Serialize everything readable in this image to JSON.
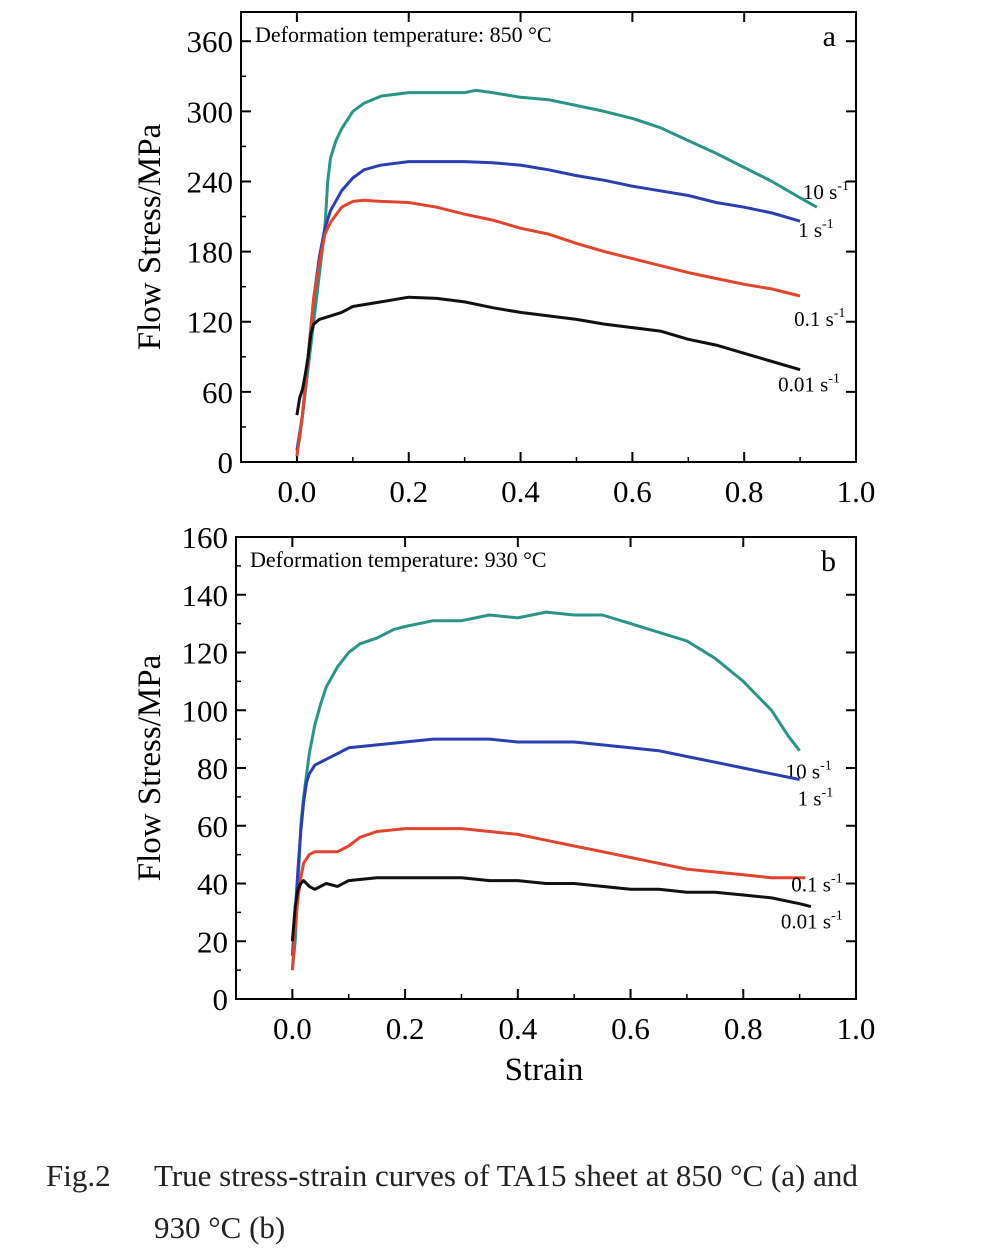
{
  "caption": {
    "label": "Fig.2",
    "text": "True stress-strain curves of TA15 sheet at 850 °C (a) and",
    "text2": "930 °C (b)"
  },
  "chart_data": [
    {
      "type": "line",
      "panel_label": "a",
      "annotation": "Deformation temperature: 850 °C",
      "xlabel": "",
      "ylabel": "Flow Stress/MPa",
      "xlim": [
        -0.1,
        1.0
      ],
      "ylim": [
        0,
        385
      ],
      "xticks": [
        "0.0",
        "0.2",
        "0.4",
        "0.6",
        "0.8",
        "1.0"
      ],
      "yticks": [
        "0",
        "60",
        "120",
        "180",
        "240",
        "300",
        "360"
      ],
      "series": [
        {
          "name": "10 s-1",
          "rate": "10",
          "color": "#2a9488",
          "x": [
            0,
            0.005,
            0.01,
            0.015,
            0.02,
            0.03,
            0.04,
            0.05,
            0.055,
            0.06,
            0.07,
            0.08,
            0.1,
            0.12,
            0.15,
            0.2,
            0.25,
            0.3,
            0.32,
            0.35,
            0.4,
            0.45,
            0.5,
            0.55,
            0.6,
            0.65,
            0.7,
            0.75,
            0.8,
            0.85,
            0.9,
            0.93
          ],
          "y": [
            10,
            20,
            40,
            60,
            80,
            120,
            160,
            200,
            240,
            260,
            275,
            285,
            300,
            307,
            313,
            316,
            316,
            316,
            318,
            316,
            312,
            310,
            305,
            300,
            294,
            286,
            275,
            264,
            252,
            240,
            226,
            218
          ]
        },
        {
          "name": "1 s-1",
          "rate": "1",
          "color": "#2b3fb0",
          "x": [
            0,
            0.01,
            0.02,
            0.03,
            0.04,
            0.05,
            0.06,
            0.08,
            0.1,
            0.12,
            0.15,
            0.2,
            0.25,
            0.3,
            0.35,
            0.4,
            0.45,
            0.5,
            0.55,
            0.6,
            0.65,
            0.7,
            0.75,
            0.8,
            0.85,
            0.9
          ],
          "y": [
            10,
            40,
            90,
            140,
            175,
            200,
            215,
            232,
            243,
            250,
            254,
            257,
            257,
            257,
            256,
            254,
            250,
            245,
            241,
            236,
            232,
            228,
            222,
            218,
            213,
            206
          ]
        },
        {
          "name": "0.1 s-1",
          "rate": "0.1",
          "color": "#e0452e",
          "x": [
            0,
            0.01,
            0.02,
            0.03,
            0.04,
            0.05,
            0.06,
            0.08,
            0.1,
            0.12,
            0.15,
            0.2,
            0.25,
            0.3,
            0.35,
            0.4,
            0.45,
            0.5,
            0.55,
            0.6,
            0.65,
            0.7,
            0.75,
            0.8,
            0.85,
            0.9
          ],
          "y": [
            5,
            40,
            90,
            140,
            170,
            195,
            205,
            218,
            223,
            224,
            223,
            222,
            218,
            212,
            207,
            200,
            195,
            187,
            180,
            174,
            168,
            162,
            157,
            152,
            148,
            142
          ]
        },
        {
          "name": "0.01 s-1",
          "rate": "0.01",
          "color": "#111111",
          "x": [
            0,
            0.005,
            0.01,
            0.015,
            0.02,
            0.025,
            0.03,
            0.04,
            0.06,
            0.08,
            0.1,
            0.15,
            0.2,
            0.25,
            0.3,
            0.35,
            0.4,
            0.45,
            0.5,
            0.55,
            0.6,
            0.65,
            0.7,
            0.75,
            0.8,
            0.85,
            0.9
          ],
          "y": [
            40,
            55,
            62,
            75,
            90,
            110,
            118,
            122,
            125,
            128,
            133,
            137,
            141,
            140,
            137,
            132,
            128,
            125,
            122,
            118,
            115,
            112,
            105,
            100,
            93,
            86,
            79
          ]
        }
      ]
    },
    {
      "type": "line",
      "panel_label": "b",
      "annotation": "Deformation temperature: 930 °C",
      "xlabel": "Strain",
      "ylabel": "Flow Stress/MPa",
      "xlim": [
        -0.1,
        1.0
      ],
      "ylim": [
        0,
        160
      ],
      "xticks": [
        "0.0",
        "0.2",
        "0.4",
        "0.6",
        "0.8",
        "1.0"
      ],
      "yticks": [
        "0",
        "20",
        "40",
        "60",
        "80",
        "100",
        "120",
        "140",
        "160"
      ],
      "series": [
        {
          "name": "10 s-1",
          "rate": "10",
          "color": "#2a9488",
          "x": [
            0,
            0.005,
            0.01,
            0.015,
            0.02,
            0.03,
            0.04,
            0.05,
            0.06,
            0.08,
            0.1,
            0.12,
            0.15,
            0.18,
            0.2,
            0.25,
            0.3,
            0.35,
            0.4,
            0.45,
            0.5,
            0.55,
            0.6,
            0.65,
            0.7,
            0.75,
            0.8,
            0.85,
            0.88,
            0.9
          ],
          "y": [
            10,
            20,
            40,
            60,
            70,
            85,
            95,
            102,
            108,
            115,
            120,
            123,
            125,
            128,
            129,
            131,
            131,
            133,
            132,
            134,
            133,
            133,
            130,
            127,
            124,
            118,
            110,
            100,
            91,
            86
          ]
        },
        {
          "name": "1 s-1",
          "rate": "1",
          "color": "#2b3fb0",
          "x": [
            0,
            0.005,
            0.01,
            0.015,
            0.02,
            0.025,
            0.03,
            0.04,
            0.06,
            0.08,
            0.1,
            0.15,
            0.2,
            0.25,
            0.3,
            0.35,
            0.4,
            0.45,
            0.5,
            0.55,
            0.6,
            0.65,
            0.7,
            0.75,
            0.8,
            0.85,
            0.9
          ],
          "y": [
            15,
            30,
            45,
            58,
            68,
            75,
            78,
            81,
            83,
            85,
            87,
            88,
            89,
            90,
            90,
            90,
            89,
            89,
            89,
            88,
            87,
            86,
            84,
            82,
            80,
            78,
            76
          ]
        },
        {
          "name": "0.1 s-1",
          "rate": "0.1",
          "color": "#e0452e",
          "x": [
            0,
            0.005,
            0.01,
            0.015,
            0.02,
            0.03,
            0.04,
            0.06,
            0.08,
            0.1,
            0.12,
            0.15,
            0.2,
            0.25,
            0.3,
            0.35,
            0.4,
            0.45,
            0.5,
            0.55,
            0.6,
            0.65,
            0.7,
            0.75,
            0.8,
            0.85,
            0.91
          ],
          "y": [
            10,
            25,
            35,
            42,
            47,
            50,
            51,
            51,
            51,
            53,
            56,
            58,
            59,
            59,
            59,
            58,
            57,
            55,
            53,
            51,
            49,
            47,
            45,
            44,
            43,
            42,
            42
          ]
        },
        {
          "name": "0.01 s-1",
          "rate": "0.01",
          "color": "#111111",
          "x": [
            0,
            0.005,
            0.01,
            0.015,
            0.02,
            0.03,
            0.04,
            0.06,
            0.08,
            0.1,
            0.15,
            0.2,
            0.25,
            0.3,
            0.35,
            0.4,
            0.45,
            0.5,
            0.55,
            0.6,
            0.65,
            0.7,
            0.75,
            0.8,
            0.85,
            0.9,
            0.92
          ],
          "y": [
            20,
            32,
            38,
            40,
            41,
            39,
            38,
            40,
            39,
            41,
            42,
            42,
            42,
            42,
            41,
            41,
            40,
            40,
            39,
            38,
            38,
            37,
            37,
            36,
            35,
            33,
            32
          ]
        }
      ]
    }
  ]
}
